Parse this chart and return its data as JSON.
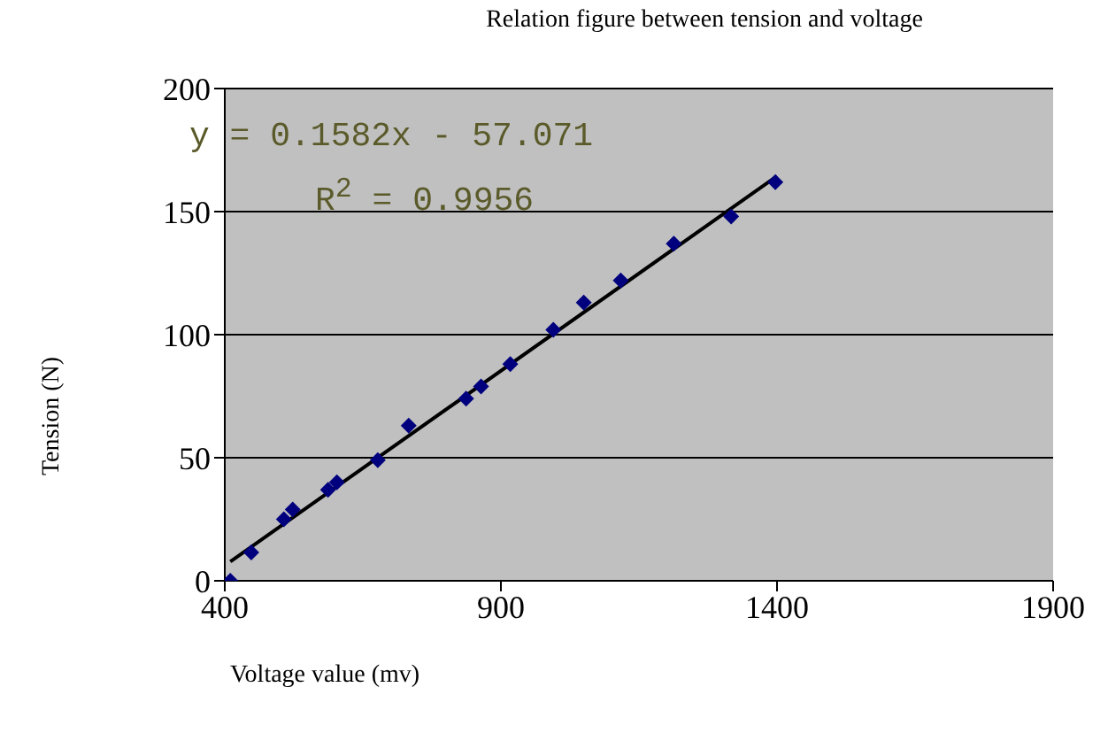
{
  "chart_data": {
    "type": "scatter",
    "title": "Relation figure between tension and voltage",
    "xlabel": "Voltage value (mv)",
    "ylabel": "Tension (N)",
    "annotations": [
      "y = 0.1582x - 57.071",
      "R$^{2}$ = 0.9956"
    ],
    "xlim": [
      400,
      1900
    ],
    "xticks": [
      400,
      900,
      1400,
      1900
    ],
    "ylim": [
      0,
      200
    ],
    "yticks": [
      0,
      50,
      100,
      150,
      200
    ],
    "grid": "y",
    "marker": "diamond",
    "legend": false,
    "series": [
      {
        "color": "#00007f",
        "x": [
          410,
          448,
          507,
          523,
          587,
          603,
          677,
          733,
          837,
          864,
          917,
          995,
          1050,
          1117,
          1213,
          1317,
          1397
        ],
        "values": [
          0,
          11.5,
          25,
          29,
          37,
          40,
          49,
          63,
          74,
          79,
          88,
          102,
          113,
          122,
          137,
          148,
          162
        ]
      },
      {
        "type": "line",
        "marker": "none",
        "color": "#000000",
        "x": [
          410,
          1400
        ],
        "values": [
          7.8,
          164.4
        ]
      }
    ]
  }
}
